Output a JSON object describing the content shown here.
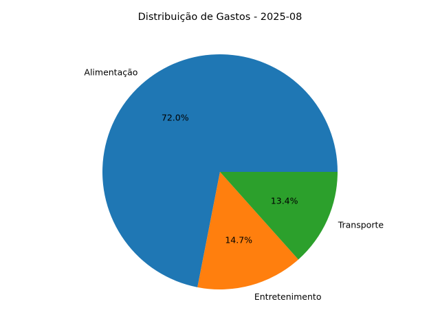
{
  "chart_data": {
    "type": "pie",
    "title": "Distribuição de Gastos - 2025-08",
    "categories": [
      "Alimentação",
      "Entretenimento",
      "Transporte"
    ],
    "values": [
      72.0,
      14.7,
      13.4
    ],
    "percent_labels": [
      "72.0%",
      "14.7%",
      "13.4%"
    ],
    "colors": [
      "#1f77b4",
      "#ff7f0e",
      "#2ca02c"
    ],
    "start_angle_deg": 0,
    "direction": "counterclockwise",
    "legend": "none"
  }
}
